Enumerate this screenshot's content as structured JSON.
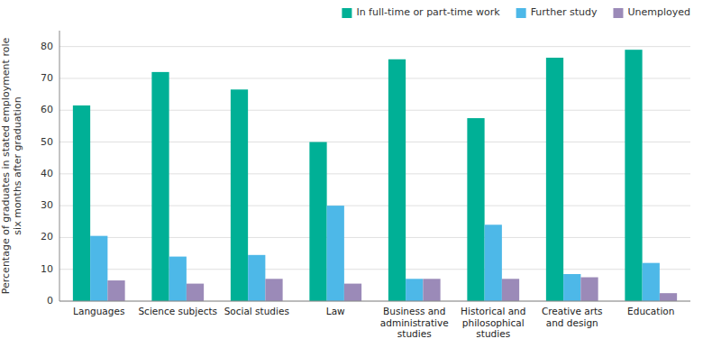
{
  "chart_data": {
    "type": "bar",
    "categories": [
      "Languages",
      "Science subjects",
      "Social studies",
      "Law",
      "Business and\nadministrative\nstudies",
      "Historical and\nphilosophical\nstudies",
      "Creative arts\nand design",
      "Education"
    ],
    "series": [
      {
        "name": "In full-time or part-time work",
        "color": "#00b096",
        "values": [
          61.5,
          72,
          66.5,
          50,
          76,
          57.5,
          76.5,
          79
        ]
      },
      {
        "name": "Further study",
        "color": "#4db8e8",
        "values": [
          20.5,
          14,
          14.5,
          30,
          7,
          24,
          8.5,
          12
        ]
      },
      {
        "name": "Unemployed",
        "color": "#9b8ab8",
        "values": [
          6.5,
          5.5,
          7,
          5.5,
          7,
          7,
          7.5,
          2.5
        ]
      }
    ],
    "ylabel": "Percentage of graduates in stated employment role\nsix months after graduation",
    "ylim": [
      0,
      85
    ],
    "yticks": [
      0,
      10,
      20,
      30,
      40,
      50,
      60,
      70,
      80
    ],
    "grid": true,
    "legend": "upper right"
  }
}
